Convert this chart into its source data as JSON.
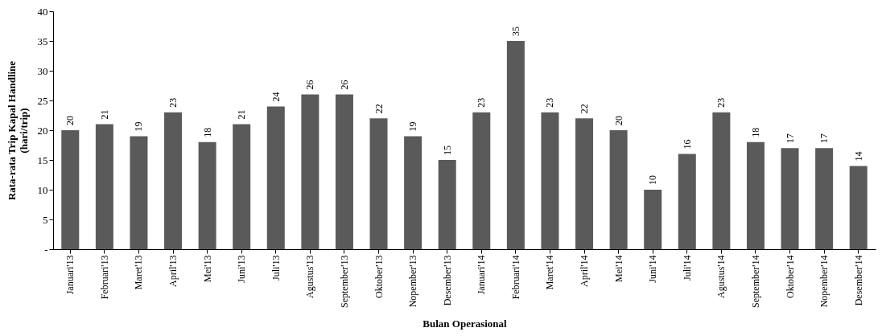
{
  "chart_data": {
    "type": "bar",
    "xlabel": "Bulan Operasional",
    "ylabel": "Rata-rata Trip Kapal Handline\n(hari/trip)",
    "categories": [
      "Januari'13",
      "Februari'13",
      "Maret'13",
      "April'13",
      "Mei'13",
      "Juni'13",
      "Juli'13",
      "Agustus'13",
      "September'13",
      "Oktober'13",
      "Nopember'13",
      "Desember'13",
      "Januari'14",
      "Februari'14",
      "Maret'14",
      "April'14",
      "Mei'14",
      "Juni'14",
      "Juli'14",
      "Agustus'14",
      "September'14",
      "Oktober'14",
      "Nopember'14",
      "Desember'14"
    ],
    "values": [
      20,
      21,
      19,
      23,
      18,
      21,
      24,
      26,
      26,
      22,
      19,
      15,
      23,
      35,
      23,
      22,
      20,
      10,
      16,
      23,
      18,
      17,
      17,
      14
    ],
    "color": "#5a5a5a",
    "ylim": [
      0,
      40
    ],
    "yticks": [
      {
        "value": 0,
        "label": "-"
      },
      5,
      10,
      15,
      20,
      25,
      30,
      35,
      40
    ],
    "data_labels": true,
    "grid": false
  }
}
